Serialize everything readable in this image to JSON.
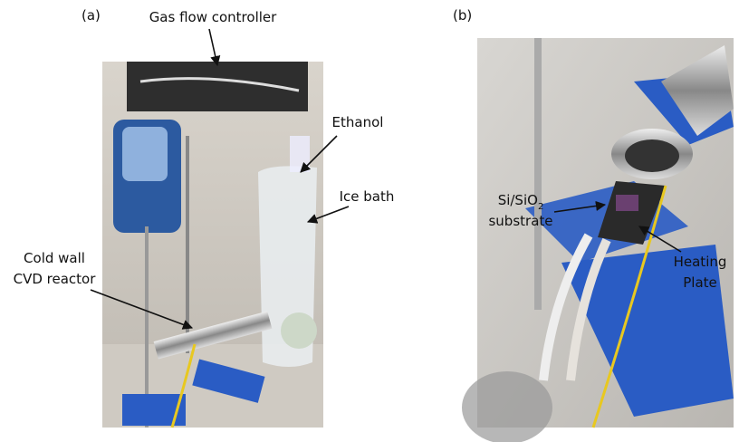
{
  "panels": [
    {
      "label": "(a)",
      "annotations": [
        {
          "lines": [
            "Gas flow controller"
          ]
        },
        {
          "lines": [
            "Ethanol"
          ]
        },
        {
          "lines": [
            "Ice bath"
          ]
        },
        {
          "lines": [
            "Cold wall",
            "CVD reactor"
          ]
        }
      ]
    },
    {
      "label": "(b)",
      "annotations": [
        {
          "lines": [
            "Si/SiO",
            "substrate"
          ],
          "subscript": "2"
        },
        {
          "lines": [
            "Heating",
            "Plate"
          ]
        }
      ]
    }
  ]
}
